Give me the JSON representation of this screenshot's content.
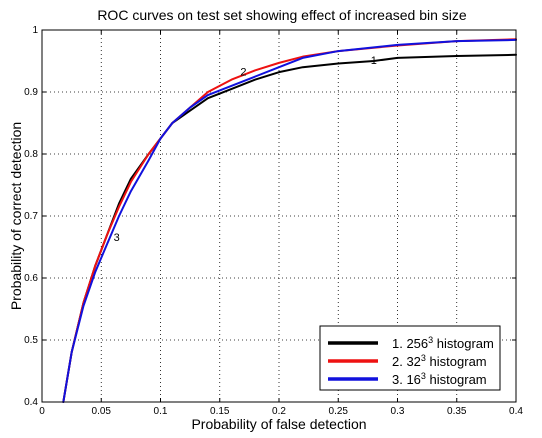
{
  "chart_data": {
    "type": "line",
    "title": "ROC curves on test set showing effect of increased bin size",
    "xlabel": "Probability of false detection",
    "ylabel": "Probability of correct detection",
    "xlim": [
      0,
      0.4
    ],
    "ylim": [
      0.4,
      1
    ],
    "xticks": [
      "0",
      "0.05",
      "0.1",
      "0.15",
      "0.2",
      "0.25",
      "0.3",
      "0.35",
      "0.4"
    ],
    "yticks": [
      "0.4",
      "0.5",
      "0.6",
      "0.7",
      "0.8",
      "0.9",
      "1"
    ],
    "grid": true,
    "legend_position": "bottom-right",
    "series": [
      {
        "name": "1. 256³ histogram",
        "legend_base": "1. 256",
        "legend_sup": "3",
        "legend_rest": " histogram",
        "color": "#000000",
        "x": [
          0.018,
          0.025,
          0.035,
          0.045,
          0.055,
          0.065,
          0.075,
          0.09,
          0.1,
          0.11,
          0.125,
          0.14,
          0.16,
          0.18,
          0.2,
          0.22,
          0.25,
          0.28,
          0.3,
          0.35,
          0.4
        ],
        "y": [
          0.4,
          0.48,
          0.56,
          0.62,
          0.67,
          0.72,
          0.76,
          0.8,
          0.825,
          0.85,
          0.87,
          0.89,
          0.905,
          0.92,
          0.932,
          0.94,
          0.946,
          0.95,
          0.955,
          0.958,
          0.96
        ]
      },
      {
        "name": "2. 32³ histogram",
        "legend_base": "2. 32",
        "legend_sup": "3",
        "legend_rest": " histogram",
        "color": "#ee1111",
        "x": [
          0.018,
          0.025,
          0.035,
          0.045,
          0.055,
          0.065,
          0.075,
          0.09,
          0.1,
          0.11,
          0.125,
          0.14,
          0.16,
          0.18,
          0.2,
          0.22,
          0.25,
          0.3,
          0.35,
          0.4
        ],
        "y": [
          0.4,
          0.48,
          0.56,
          0.62,
          0.67,
          0.715,
          0.755,
          0.8,
          0.825,
          0.85,
          0.875,
          0.9,
          0.92,
          0.935,
          0.947,
          0.957,
          0.966,
          0.975,
          0.982,
          0.985
        ]
      },
      {
        "name": "3. 16³ histogram",
        "legend_base": "3. 16",
        "legend_sup": "3",
        "legend_rest": " histogram",
        "color": "#1111dd",
        "x": [
          0.018,
          0.025,
          0.035,
          0.045,
          0.055,
          0.065,
          0.075,
          0.09,
          0.1,
          0.11,
          0.125,
          0.14,
          0.16,
          0.18,
          0.2,
          0.22,
          0.25,
          0.3,
          0.35,
          0.4
        ],
        "y": [
          0.4,
          0.48,
          0.555,
          0.61,
          0.655,
          0.7,
          0.74,
          0.79,
          0.825,
          0.85,
          0.875,
          0.895,
          0.91,
          0.925,
          0.94,
          0.955,
          0.966,
          0.976,
          0.982,
          0.984
        ]
      }
    ],
    "annotations": [
      {
        "text": "1",
        "x": 0.28,
        "y": 0.945
      },
      {
        "text": "2",
        "x": 0.17,
        "y": 0.927
      },
      {
        "text": "3",
        "x": 0.063,
        "y": 0.66
      }
    ]
  }
}
